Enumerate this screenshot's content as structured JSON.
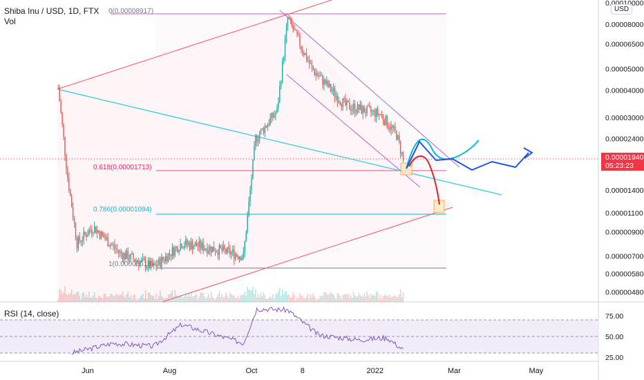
{
  "header": {
    "symbol_line": "Shiba Inu / USD, 1D, FTX",
    "vol_label": "Vol",
    "currency_badge": "USD"
  },
  "rsi": {
    "title": "RSI (14, close)",
    "levels": [
      75,
      50,
      25
    ],
    "tick_labels": [
      "75.00",
      "50.00",
      "25.00"
    ]
  },
  "current_price": {
    "value": "0.00001940",
    "countdown": "05:23:23"
  },
  "fib_labels": {
    "level_0": "0(0.00008917)",
    "level_618": "0.618(0.00001713)",
    "level_786": "0.786(0.00001094)",
    "level_1": "1(0.00000618)"
  },
  "chart_data": {
    "type": "candlestick",
    "y_scale": "log",
    "price_axis_ticks": [
      "0.00010000",
      "0.00008000",
      "0.00006500",
      "0.00005000",
      "0.00004000",
      "0.00003000",
      "0.00002400",
      "0.00001940",
      "0.00001400",
      "0.00001100",
      "0.00000900",
      "0.00000700",
      "0.00000580",
      "0.00000480"
    ],
    "x_axis_ticks": [
      "Jun",
      "Aug",
      "Oct",
      "8",
      "2022",
      "Mar",
      "May"
    ],
    "x_tick_values": [
      "2021-06-01",
      "2021-08-01",
      "2021-10-01",
      "2021-11-08",
      "2022-01-01",
      "2022-03-01",
      "2022-05-01"
    ],
    "approx_close_path": [
      {
        "date": "2021-05-10",
        "close": 4.1e-05
      },
      {
        "date": "2021-05-17",
        "close": 1.6e-05
      },
      {
        "date": "2021-05-24",
        "close": 8e-06
      },
      {
        "date": "2021-06-05",
        "close": 9.5e-06
      },
      {
        "date": "2021-06-25",
        "close": 7.2e-06
      },
      {
        "date": "2021-07-20",
        "close": 6.2e-06
      },
      {
        "date": "2021-08-10",
        "close": 8e-06
      },
      {
        "date": "2021-09-01",
        "close": 7.6e-06
      },
      {
        "date": "2021-09-25",
        "close": 7e-06
      },
      {
        "date": "2021-10-04",
        "close": 2.4e-05
      },
      {
        "date": "2021-10-20",
        "close": 3.2e-05
      },
      {
        "date": "2021-10-28",
        "close": 8.5e-05
      },
      {
        "date": "2021-11-15",
        "close": 5e-05
      },
      {
        "date": "2021-12-10",
        "close": 3.4e-05
      },
      {
        "date": "2022-01-05",
        "close": 3.1e-05
      },
      {
        "date": "2022-01-17",
        "close": 2.5e-05
      },
      {
        "date": "2022-01-22",
        "close": 1.94e-05
      }
    ],
    "rsi_path": [
      {
        "date": "2021-05-20",
        "rsi": 25
      },
      {
        "date": "2021-06-20",
        "rsi": 40
      },
      {
        "date": "2021-07-20",
        "rsi": 35
      },
      {
        "date": "2021-08-10",
        "rsi": 68
      },
      {
        "date": "2021-09-05",
        "rsi": 52
      },
      {
        "date": "2021-09-25",
        "rsi": 40
      },
      {
        "date": "2021-10-05",
        "rsi": 92
      },
      {
        "date": "2021-10-28",
        "rsi": 90
      },
      {
        "date": "2021-11-20",
        "rsi": 52
      },
      {
        "date": "2021-12-20",
        "rsi": 45
      },
      {
        "date": "2022-01-10",
        "rsi": 48
      },
      {
        "date": "2022-01-22",
        "rsi": 30
      }
    ]
  },
  "colors": {
    "up": "#26a69a",
    "down": "#ef5350",
    "trend_red": "#f7525f",
    "channel_purple": "#9c27b0",
    "trend_cyan": "#4dd0e1",
    "fib_red": "#e91e63",
    "fib_cyan": "#00bcd4",
    "projection_blue": "#1e53e5",
    "projection_cyan": "#00bcd4",
    "projection_red": "#e01e2a",
    "rsi_line": "#7e57c2",
    "rsi_band": "#ede7f6",
    "current_price": "#f23645",
    "box_orange": "#f5a623"
  }
}
